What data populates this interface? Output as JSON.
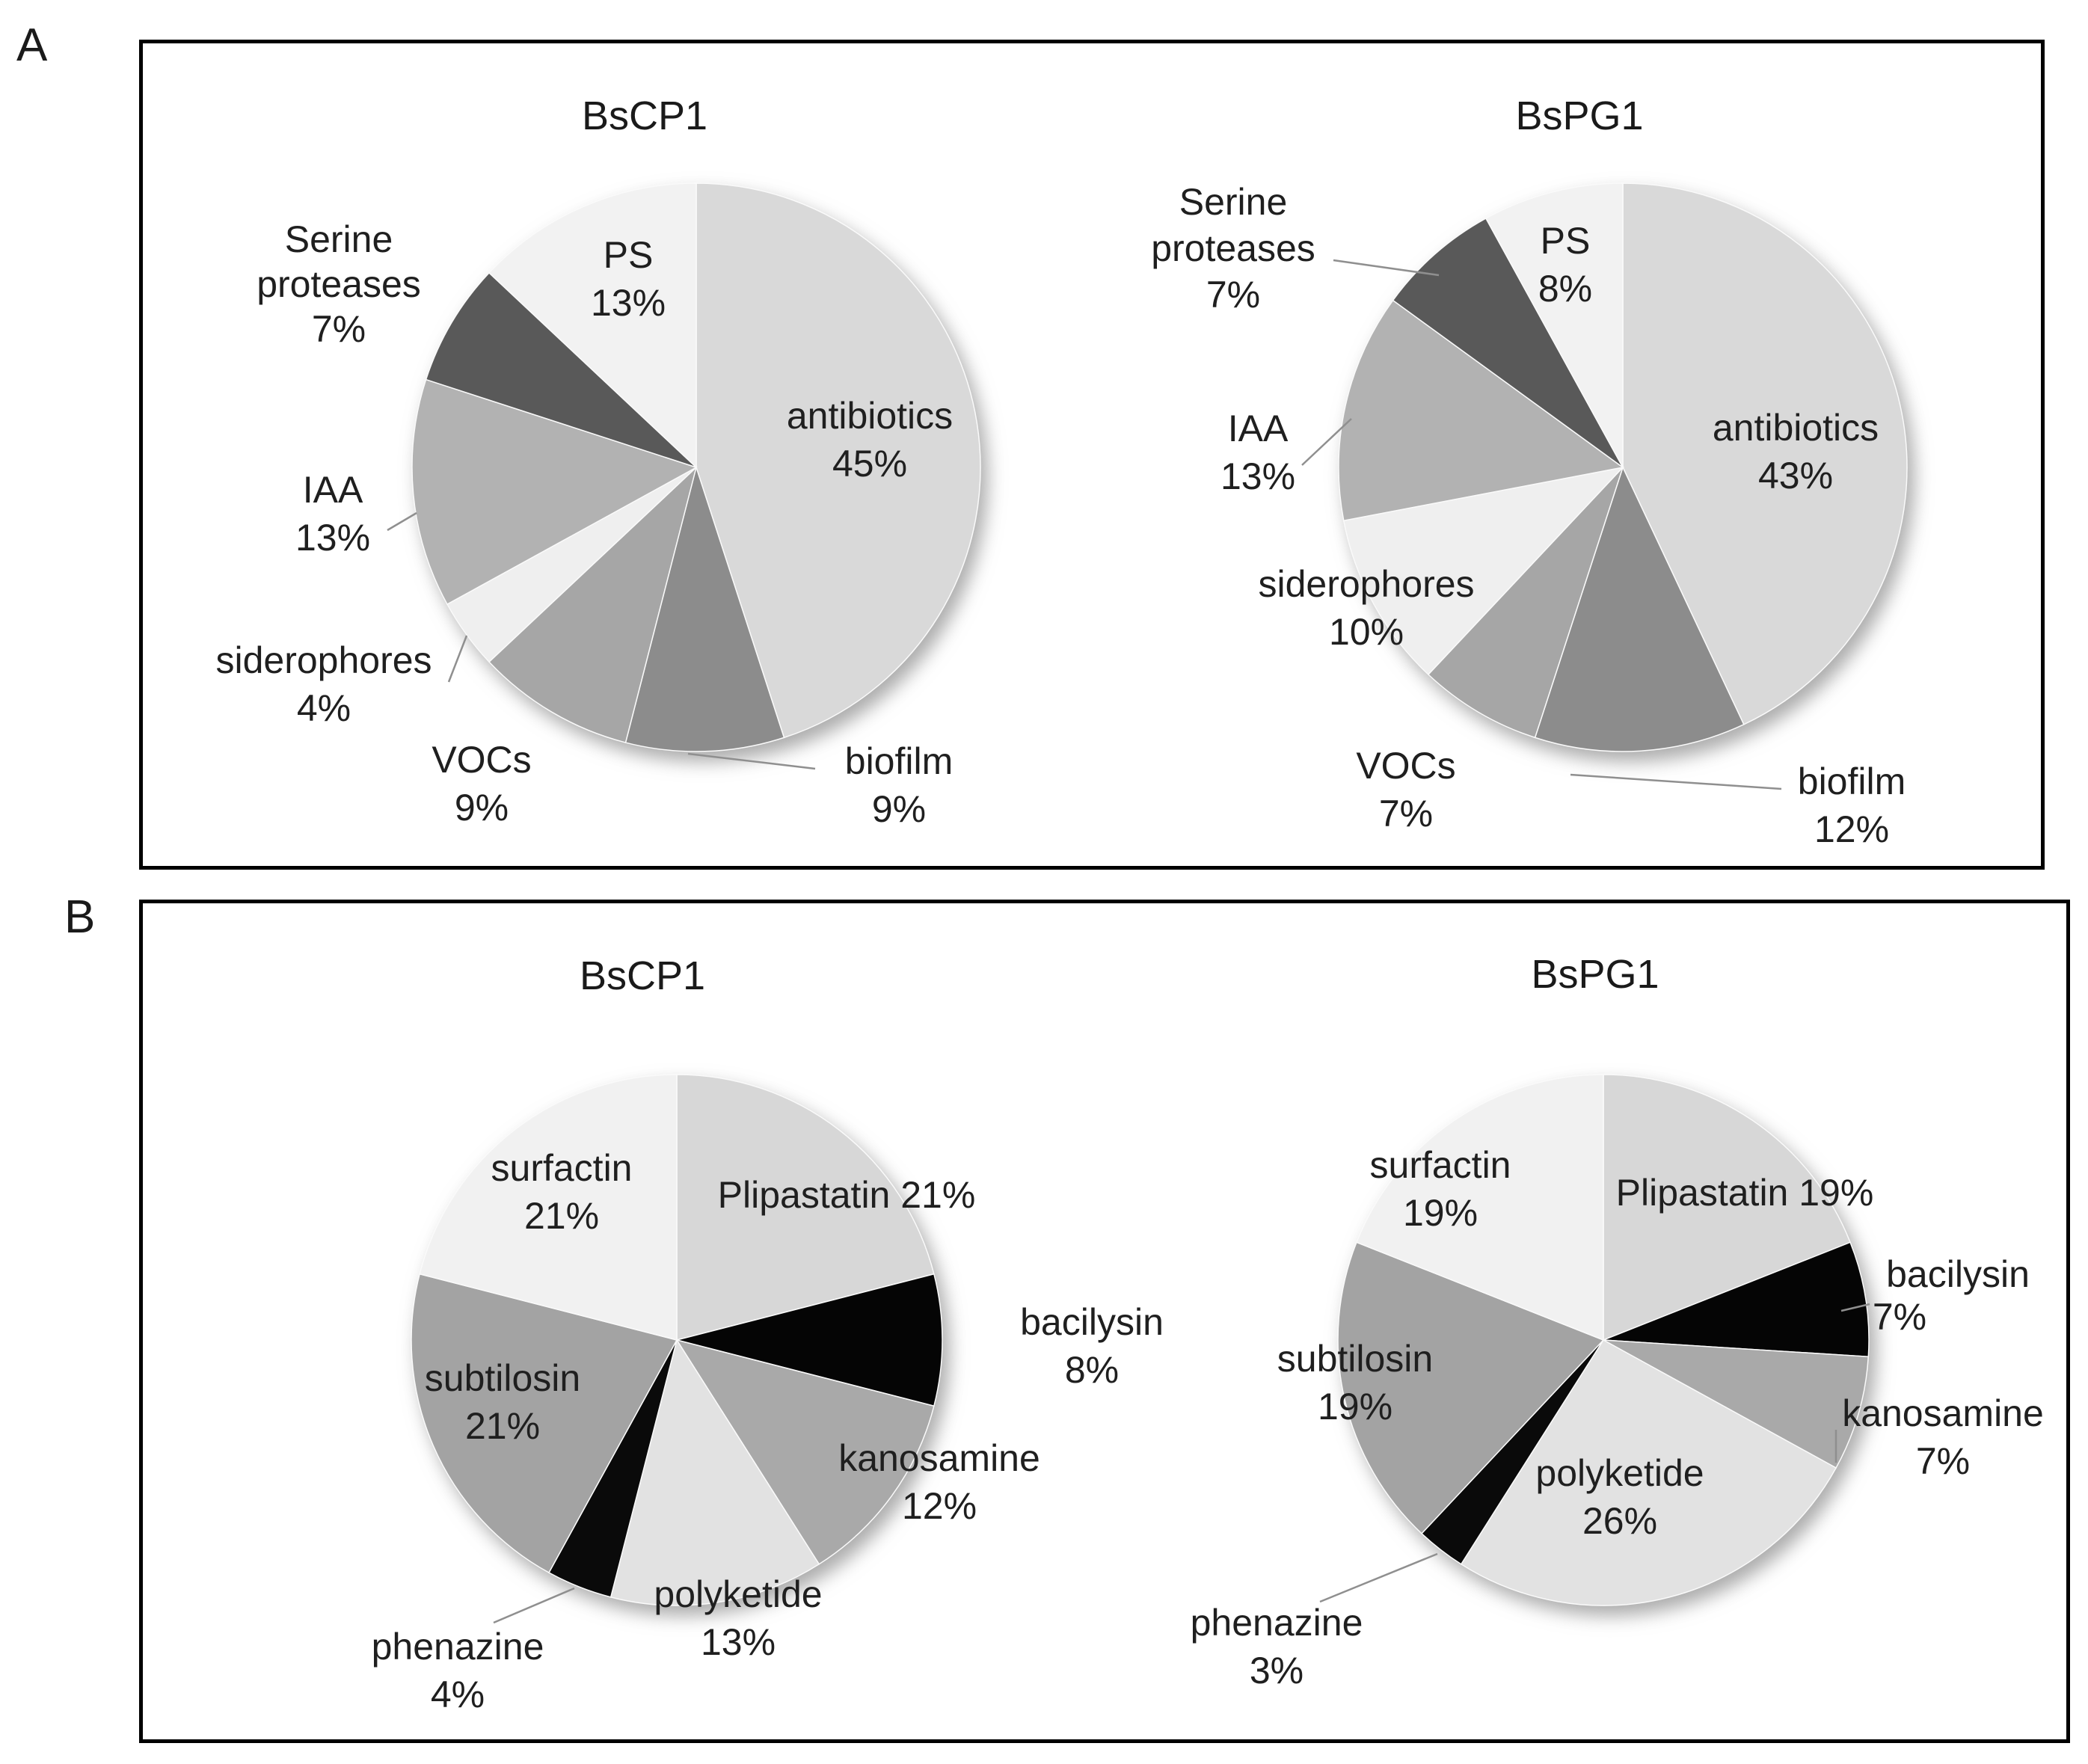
{
  "figure": {
    "panel_a_letter": "A",
    "panel_b_letter": "B",
    "text_color": "#1f1f1f",
    "border_color": "#000000",
    "leader_line_color": "#8f8f8f"
  },
  "chart_data": [
    {
      "id": "a_bscp1",
      "panel": "A",
      "type": "pie",
      "title": "BsCP1",
      "legend_position": "none",
      "series": [
        {
          "name": "antibiotics",
          "value": 45,
          "color": "#d9d9d9",
          "label_lines": [
            "antibiotics",
            "45%"
          ]
        },
        {
          "name": "biofilm",
          "value": 9,
          "color": "#8c8c8c",
          "label_lines": [
            "biofilm",
            "9%"
          ]
        },
        {
          "name": "VOCs",
          "value": 9,
          "color": "#a6a6a6",
          "label_lines": [
            "VOCs",
            "9%"
          ]
        },
        {
          "name": "siderophores",
          "value": 4,
          "color": "#efefef",
          "label_lines": [
            "siderophores",
            "4%"
          ]
        },
        {
          "name": "IAA",
          "value": 13,
          "color": "#b2b2b2",
          "label_lines": [
            "IAA",
            "13%"
          ]
        },
        {
          "name": "Serine proteases",
          "value": 7,
          "color": "#595959",
          "label_lines": [
            "Serine",
            "proteases",
            "7%"
          ]
        },
        {
          "name": "PS",
          "value": 13,
          "color": "#f2f2f2",
          "label_lines": [
            "PS",
            "13%"
          ]
        }
      ]
    },
    {
      "id": "a_bspg1",
      "panel": "A",
      "type": "pie",
      "title": "BsPG1",
      "legend_position": "none",
      "series": [
        {
          "name": "antibiotics",
          "value": 43,
          "color": "#d9d9d9",
          "label_lines": [
            "antibiotics",
            "43%"
          ]
        },
        {
          "name": "biofilm",
          "value": 12,
          "color": "#8c8c8c",
          "label_lines": [
            "biofilm",
            "12%"
          ]
        },
        {
          "name": "VOCs",
          "value": 7,
          "color": "#a6a6a6",
          "label_lines": [
            "VOCs",
            "7%"
          ]
        },
        {
          "name": "siderophores",
          "value": 10,
          "color": "#efefef",
          "label_lines": [
            "siderophores",
            "10%"
          ]
        },
        {
          "name": "IAA",
          "value": 13,
          "color": "#b2b2b2",
          "label_lines": [
            "IAA",
            "13%"
          ]
        },
        {
          "name": "Serine proteases",
          "value": 7,
          "color": "#595959",
          "label_lines": [
            "Serine",
            "proteases",
            "7%"
          ]
        },
        {
          "name": "PS",
          "value": 8,
          "color": "#f2f2f2",
          "label_lines": [
            "PS",
            "8%"
          ]
        }
      ]
    },
    {
      "id": "b_bscp1",
      "panel": "B",
      "type": "pie",
      "title": "BsCP1",
      "legend_position": "none",
      "series": [
        {
          "name": "Plipastatin",
          "value": 21,
          "color": "#d7d7d7",
          "label_lines": [
            "Plipastatin 21%"
          ]
        },
        {
          "name": "bacilysin",
          "value": 8,
          "color": "#050505",
          "label_lines": [
            "bacilysin",
            "8%"
          ]
        },
        {
          "name": "kanosamine",
          "value": 12,
          "color": "#a9a9a9",
          "label_lines": [
            "kanosamine",
            "12%"
          ]
        },
        {
          "name": "polyketide",
          "value": 13,
          "color": "#e2e2e2",
          "label_lines": [
            "polyketide",
            "13%"
          ]
        },
        {
          "name": "phenazine",
          "value": 4,
          "color": "#0a0a0a",
          "label_lines": [
            "phenazine",
            "4%"
          ]
        },
        {
          "name": "subtilosin",
          "value": 21,
          "color": "#a3a3a3",
          "label_lines": [
            "subtilosin",
            "21%"
          ]
        },
        {
          "name": "surfactin",
          "value": 21,
          "color": "#f1f1f1",
          "label_lines": [
            "surfactin",
            "21%"
          ]
        }
      ]
    },
    {
      "id": "b_bspg1",
      "panel": "B",
      "type": "pie",
      "title": "BsPG1",
      "legend_position": "none",
      "series": [
        {
          "name": "Plipastatin",
          "value": 19,
          "color": "#d7d7d7",
          "label_lines": [
            "Plipastatin 19%"
          ]
        },
        {
          "name": "bacilysin",
          "value": 7,
          "color": "#050505",
          "label_lines": [
            "bacilysin",
            "7%"
          ]
        },
        {
          "name": "kanosamine",
          "value": 7,
          "color": "#a9a9a9",
          "label_lines": [
            "kanosamine",
            "7%"
          ]
        },
        {
          "name": "polyketide",
          "value": 26,
          "color": "#e2e2e2",
          "label_lines": [
            "polyketide",
            "26%"
          ]
        },
        {
          "name": "phenazine",
          "value": 3,
          "color": "#0a0a0a",
          "label_lines": [
            "phenazine",
            "3%"
          ]
        },
        {
          "name": "subtilosin",
          "value": 19,
          "color": "#a3a3a3",
          "label_lines": [
            "subtilosin",
            "19%"
          ]
        },
        {
          "name": "surfactin",
          "value": 19,
          "color": "#f1f1f1",
          "label_lines": [
            "surfactin",
            "19%"
          ]
        }
      ]
    }
  ]
}
